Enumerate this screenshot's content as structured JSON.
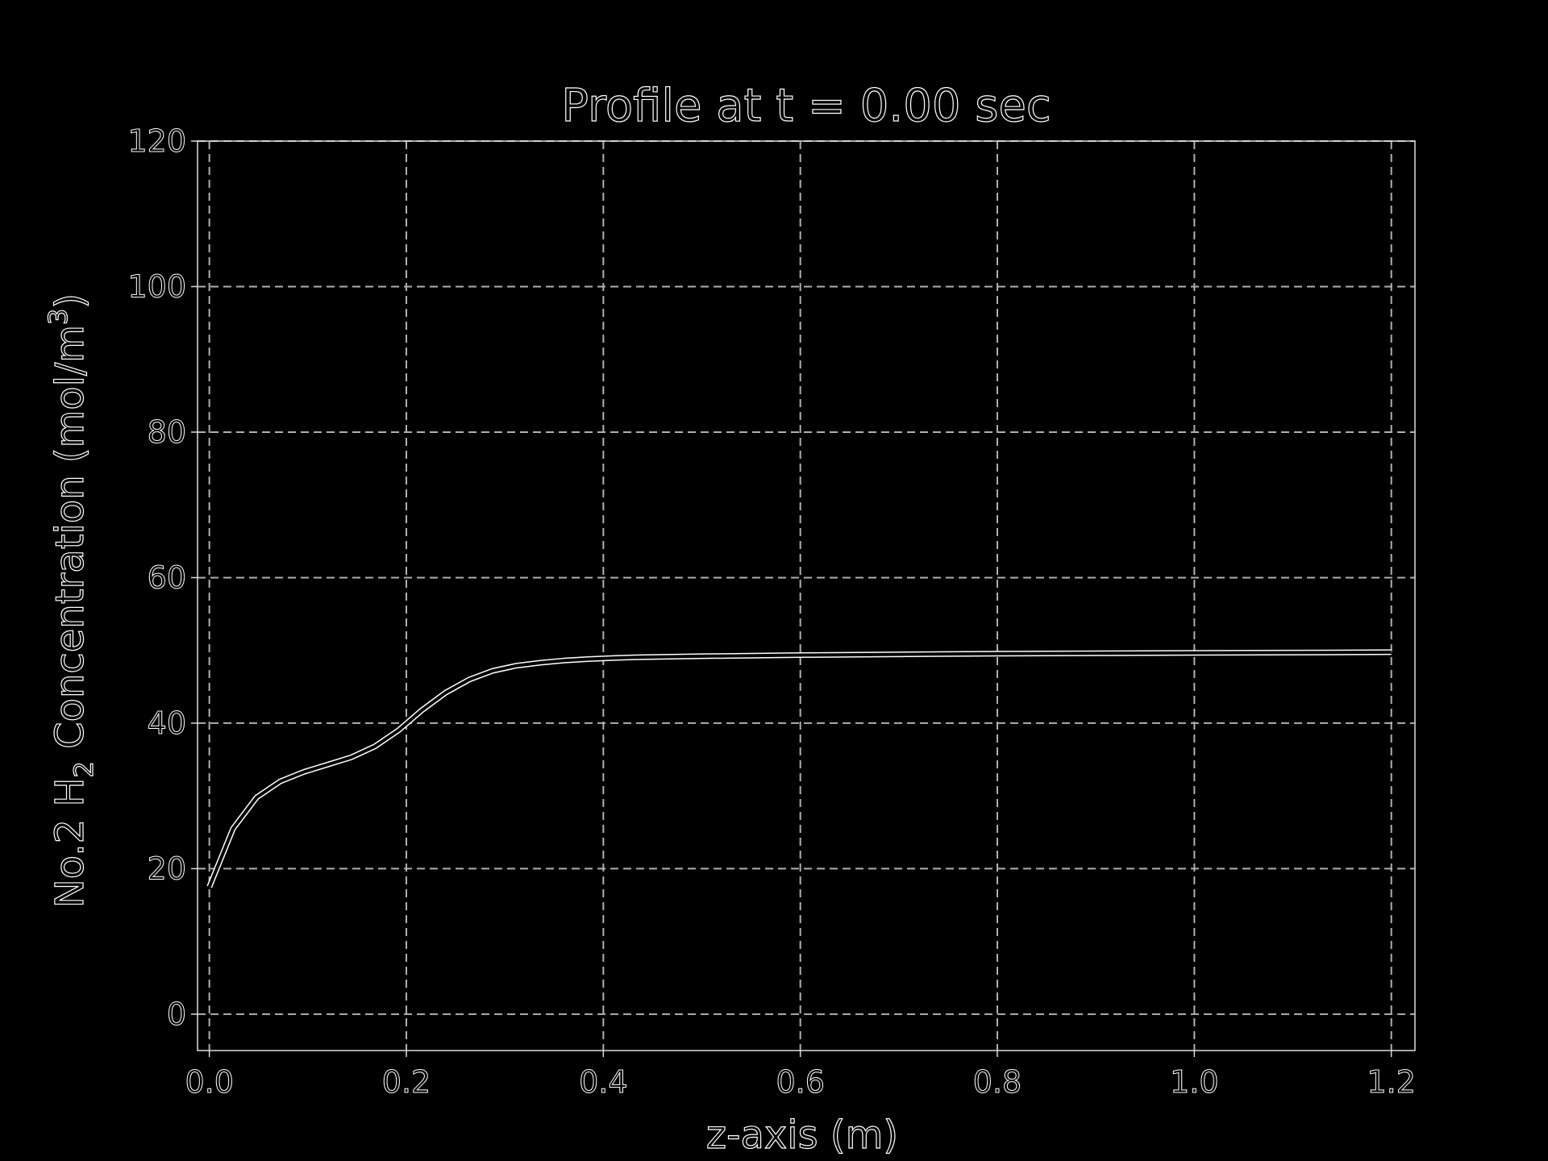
{
  "chart_data": {
    "type": "line",
    "title": "Profile at t = 0.00 sec",
    "xlabel": "z-axis (m)",
    "ylabel_main": "No.2 H",
    "ylabel_sub": "2",
    "ylabel_mid": " Concentration (mol/m",
    "ylabel_sup": "3",
    "ylabel_end": ")",
    "xlim": [
      -0.012,
      1.224
    ],
    "ylim": [
      -5,
      120
    ],
    "xticks": [
      0.0,
      0.2,
      0.4,
      0.6,
      0.8,
      1.0,
      1.2
    ],
    "xtick_labels": [
      "0.0",
      "0.2",
      "0.4",
      "0.6",
      "0.8",
      "1.0",
      "1.2"
    ],
    "yticks": [
      0,
      20,
      40,
      60,
      80,
      100,
      120
    ],
    "ytick_labels": [
      "0",
      "20",
      "40",
      "60",
      "80",
      "100",
      "120"
    ],
    "grid": true,
    "series": [
      {
        "x": [
          0.0,
          0.024,
          0.048,
          0.072,
          0.096,
          0.12,
          0.144,
          0.168,
          0.192,
          0.216,
          0.24,
          0.264,
          0.288,
          0.312,
          0.336,
          0.36,
          0.384,
          0.408,
          0.432,
          0.456,
          0.5,
          0.6,
          0.7,
          0.8,
          0.9,
          1.0,
          1.1,
          1.2
        ],
        "values": [
          17.5,
          25.5,
          29.8,
          32.0,
          33.3,
          34.3,
          35.3,
          36.8,
          39.0,
          41.8,
          44.2,
          46.0,
          47.2,
          47.9,
          48.3,
          48.6,
          48.8,
          48.95,
          49.05,
          49.1,
          49.2,
          49.35,
          49.45,
          49.55,
          49.6,
          49.65,
          49.7,
          49.75
        ]
      }
    ],
    "colors": {
      "background": "#000000",
      "grid": "#b0b0b0",
      "axes": "#ffffff",
      "line": "#ffffff"
    }
  }
}
